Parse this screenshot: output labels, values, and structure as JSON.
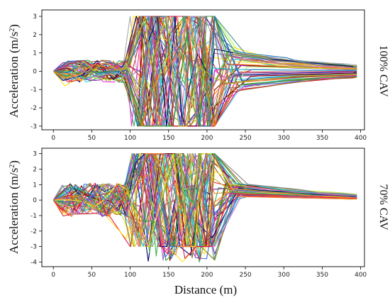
{
  "chart_data": [
    {
      "type": "line",
      "ylabel_main": "Acceleration (m/s",
      "ylabel_sup": "2",
      "ylabel_close": ")",
      "side_label": "100% CAV",
      "xlim": [
        -15,
        405
      ],
      "ylim": [
        -3.2,
        3.35
      ],
      "x_ticks": [
        0,
        50,
        100,
        150,
        200,
        250,
        300,
        350,
        400
      ],
      "y_ticks": [
        -3,
        -2,
        -1,
        0,
        1,
        2,
        3
      ],
      "grid": false,
      "legend": "none",
      "series_count": 50,
      "series": [
        {
          "values": [
            [
              0,
              0
            ],
            [
              20,
              -0.6
            ],
            [
              45,
              0.1
            ],
            [
              80,
              -0.2
            ],
            [
              100,
              -0.5
            ],
            [
              120,
              3
            ],
            [
              140,
              -3
            ],
            [
              160,
              3
            ],
            [
              180,
              -2
            ],
            [
              200,
              1
            ],
            [
              220,
              -0.5
            ],
            [
              260,
              0.1
            ],
            [
              390,
              0
            ]
          ]
        },
        {
          "values": [
            [
              0,
              0
            ],
            [
              20,
              0.3
            ],
            [
              60,
              0.2
            ],
            [
              90,
              0.1
            ],
            [
              105,
              -3
            ],
            [
              128,
              3
            ],
            [
              150,
              -3
            ],
            [
              175,
              3
            ],
            [
              200,
              -1.5
            ],
            [
              230,
              1.2
            ],
            [
              280,
              0.4
            ],
            [
              390,
              0.05
            ]
          ]
        },
        {
          "values": [
            [
              0,
              0
            ],
            [
              15,
              -0.8
            ],
            [
              40,
              -0.2
            ],
            [
              95,
              0.2
            ],
            [
              110,
              3
            ],
            [
              130,
              -3
            ],
            [
              160,
              2.5
            ],
            [
              185,
              -2.5
            ],
            [
              210,
              -3
            ],
            [
              235,
              1.3
            ],
            [
              290,
              0.6
            ],
            [
              390,
              0.1
            ]
          ]
        }
      ]
    },
    {
      "type": "line",
      "ylabel_main": "Acceleration (m/s",
      "ylabel_sup": "2",
      "ylabel_close": ")",
      "side_label": "70% CAV",
      "xlabel": "Distance (m)",
      "xlim": [
        -15,
        405
      ],
      "ylim": [
        -4.3,
        3.35
      ],
      "x_ticks": [
        0,
        50,
        100,
        150,
        200,
        250,
        300,
        350,
        400
      ],
      "y_ticks": [
        -4,
        -3,
        -2,
        -1,
        0,
        1,
        2,
        3
      ],
      "grid": false,
      "legend": "none",
      "series_count": 55,
      "series": [
        {
          "values": [
            [
              0,
              0
            ],
            [
              20,
              -1
            ],
            [
              40,
              0.5
            ],
            [
              70,
              -0.8
            ],
            [
              100,
              -3
            ],
            [
              130,
              3
            ],
            [
              155,
              -3
            ],
            [
              180,
              3
            ],
            [
              205,
              1.2
            ],
            [
              260,
              0.5
            ],
            [
              390,
              0.05
            ]
          ]
        },
        {
          "values": [
            [
              0,
              0
            ],
            [
              25,
              0.8
            ],
            [
              50,
              -0.6
            ],
            [
              85,
              0.4
            ],
            [
              110,
              2.5
            ],
            [
              140,
              -3
            ],
            [
              165,
              2
            ],
            [
              190,
              -4
            ],
            [
              215,
              0.8
            ],
            [
              300,
              0.2
            ],
            [
              390,
              0.05
            ]
          ]
        },
        {
          "values": [
            [
              0,
              0
            ],
            [
              15,
              -0.9
            ],
            [
              45,
              0.3
            ],
            [
              95,
              -2.5
            ],
            [
              120,
              3
            ],
            [
              150,
              -2.8
            ],
            [
              175,
              3
            ],
            [
              200,
              -3
            ],
            [
              225,
              1
            ],
            [
              320,
              0.15
            ],
            [
              395,
              0.05
            ]
          ]
        }
      ]
    }
  ],
  "colors": [
    "#e6194b",
    "#3cb44b",
    "#ffe119",
    "#4363d8",
    "#f58231",
    "#911eb4",
    "#42d4f4",
    "#f032e6",
    "#bfef45",
    "#469990",
    "#9A6324",
    "#800000",
    "#808000",
    "#000075",
    "#a9a9a9",
    "#e377c2",
    "#17becf",
    "#2ca02c",
    "#d62728",
    "#1f77b4",
    "#ff7f0e",
    "#9467bd",
    "#8c564b",
    "#7f7f7f",
    "#bcbd22"
  ]
}
